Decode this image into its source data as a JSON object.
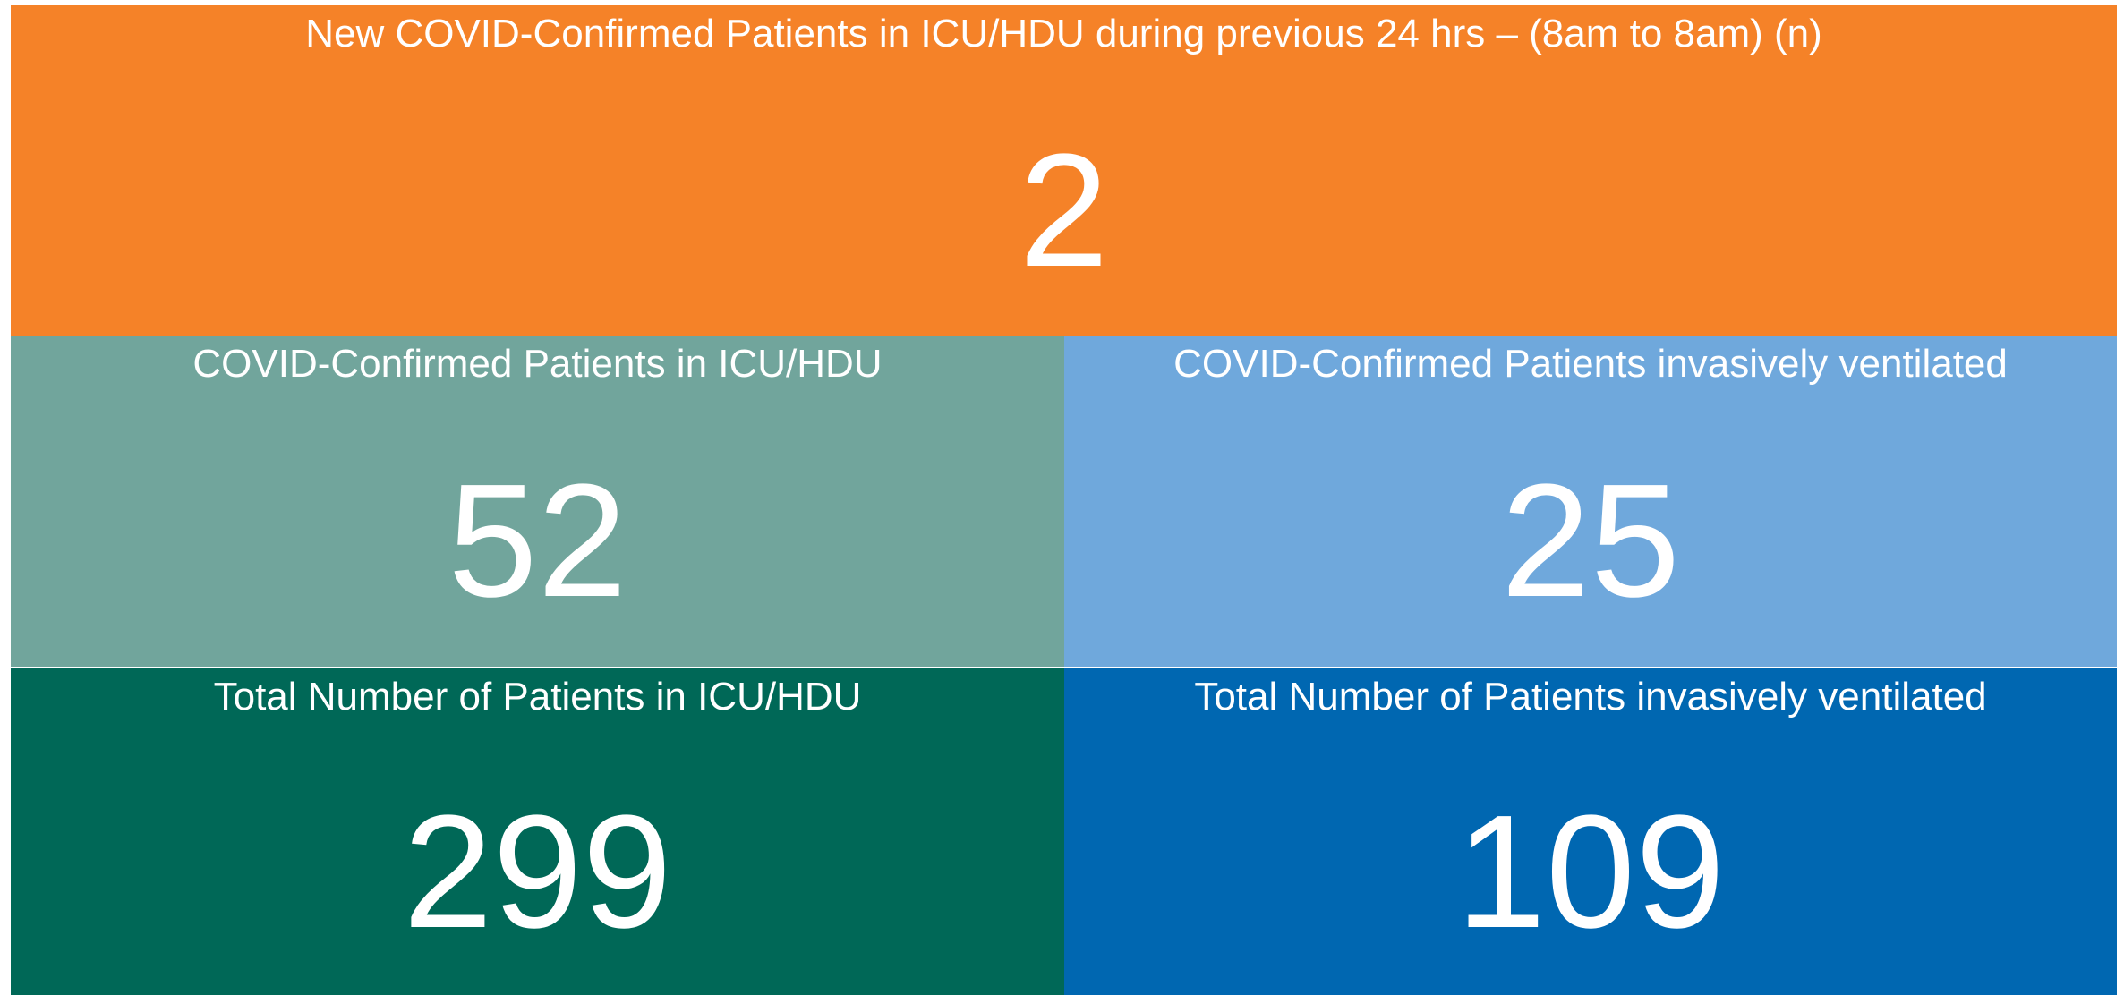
{
  "tiles": [
    {
      "label": "New COVID-Confirmed Patients in ICU/HDU during previous 24 hrs – (8am to 8am) (n)",
      "value": 2
    },
    {
      "label": "COVID-Confirmed Patients in ICU/HDU",
      "value": 52
    },
    {
      "label": "COVID-Confirmed Patients invasively ventilated",
      "value": 25
    },
    {
      "label": "Total Number of Patients in ICU/HDU",
      "value": 299
    },
    {
      "label": "Total Number of Patients invasively ventilated",
      "value": 109
    }
  ]
}
